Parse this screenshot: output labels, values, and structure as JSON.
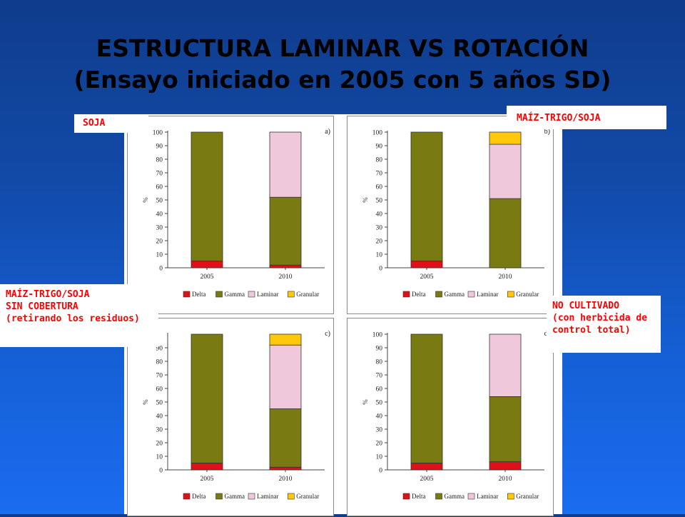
{
  "slide": {
    "title_line1": "ESTRUCTURA LAMINAR VS ROTACIÓN",
    "title_line2": "(Ensayo iniciado en 2005 con 5 años SD)"
  },
  "labels": {
    "soja": "SOJA",
    "maiz_trigo_soja": "MAÍZ-TRIGO/SOJA",
    "sin_cobertura_1": "MAÍZ-TRIGO/SOJA",
    "sin_cobertura_2": "SIN COBERTURA",
    "sin_cobertura_3": "(retirando los residuos)",
    "no_cultivado_1": "NO CULTIVADO",
    "no_cultivado_2": "(con herbicida de",
    "no_cultivado_3": "control total)"
  },
  "colors": {
    "Delta": "#e0101a",
    "Gamma": "#7a7a12",
    "Laminar": "#f0c8dc",
    "Granular": "#ffc80a"
  },
  "chart_data": [
    {
      "type": "bar",
      "stacked": true,
      "panel_label": "a)",
      "categories": [
        "2005",
        "2010"
      ],
      "ylabel": "%",
      "ylim": [
        0,
        100
      ],
      "yticks": [
        0,
        10,
        20,
        30,
        40,
        50,
        60,
        70,
        80,
        90,
        100
      ],
      "legend": [
        "Delta",
        "Gamma",
        "Laminar",
        "Granular"
      ],
      "legend_position": "bottom",
      "series": [
        {
          "name": "Delta",
          "values": [
            5,
            2
          ]
        },
        {
          "name": "Gamma",
          "values": [
            95,
            50
          ]
        },
        {
          "name": "Laminar",
          "values": [
            0,
            48
          ]
        },
        {
          "name": "Granular",
          "values": [
            0,
            0
          ]
        }
      ]
    },
    {
      "type": "bar",
      "stacked": true,
      "panel_label": "b)",
      "categories": [
        "2005",
        "2010"
      ],
      "ylabel": "%",
      "ylim": [
        0,
        100
      ],
      "yticks": [
        0,
        10,
        20,
        30,
        40,
        50,
        60,
        70,
        80,
        90,
        100
      ],
      "legend": [
        "Delta",
        "Gamma",
        "Laminar",
        "Granular"
      ],
      "legend_position": "bottom",
      "series": [
        {
          "name": "Delta",
          "values": [
            5,
            0
          ]
        },
        {
          "name": "Gamma",
          "values": [
            95,
            51
          ]
        },
        {
          "name": "Laminar",
          "values": [
            0,
            40
          ]
        },
        {
          "name": "Granular",
          "values": [
            0,
            9
          ]
        }
      ]
    },
    {
      "type": "bar",
      "stacked": true,
      "panel_label": "c)",
      "categories": [
        "2005",
        "2010"
      ],
      "ylabel": "%",
      "ylim": [
        0,
        100
      ],
      "yticks": [
        0,
        10,
        20,
        30,
        40,
        50,
        60,
        70,
        80,
        90
      ],
      "legend": [
        "Delta",
        "Gamma",
        "Laminar",
        "Granular"
      ],
      "legend_position": "bottom",
      "series": [
        {
          "name": "Delta",
          "values": [
            5,
            2
          ]
        },
        {
          "name": "Gamma",
          "values": [
            95,
            43
          ]
        },
        {
          "name": "Laminar",
          "values": [
            0,
            47
          ]
        },
        {
          "name": "Granular",
          "values": [
            0,
            8
          ]
        }
      ]
    },
    {
      "type": "bar",
      "stacked": true,
      "panel_label": "d)",
      "categories": [
        "2005",
        "2010"
      ],
      "ylabel": "%",
      "ylim": [
        0,
        100
      ],
      "yticks": [
        0,
        10,
        20,
        30,
        40,
        50,
        60,
        70,
        80,
        90,
        100
      ],
      "legend": [
        "Delta",
        "Gamma",
        "Laminar",
        "Granular"
      ],
      "legend_position": "bottom",
      "series": [
        {
          "name": "Delta",
          "values": [
            5,
            6
          ]
        },
        {
          "name": "Gamma",
          "values": [
            95,
            48
          ]
        },
        {
          "name": "Laminar",
          "values": [
            0,
            46
          ]
        },
        {
          "name": "Granular",
          "values": [
            0,
            0
          ]
        }
      ]
    }
  ]
}
